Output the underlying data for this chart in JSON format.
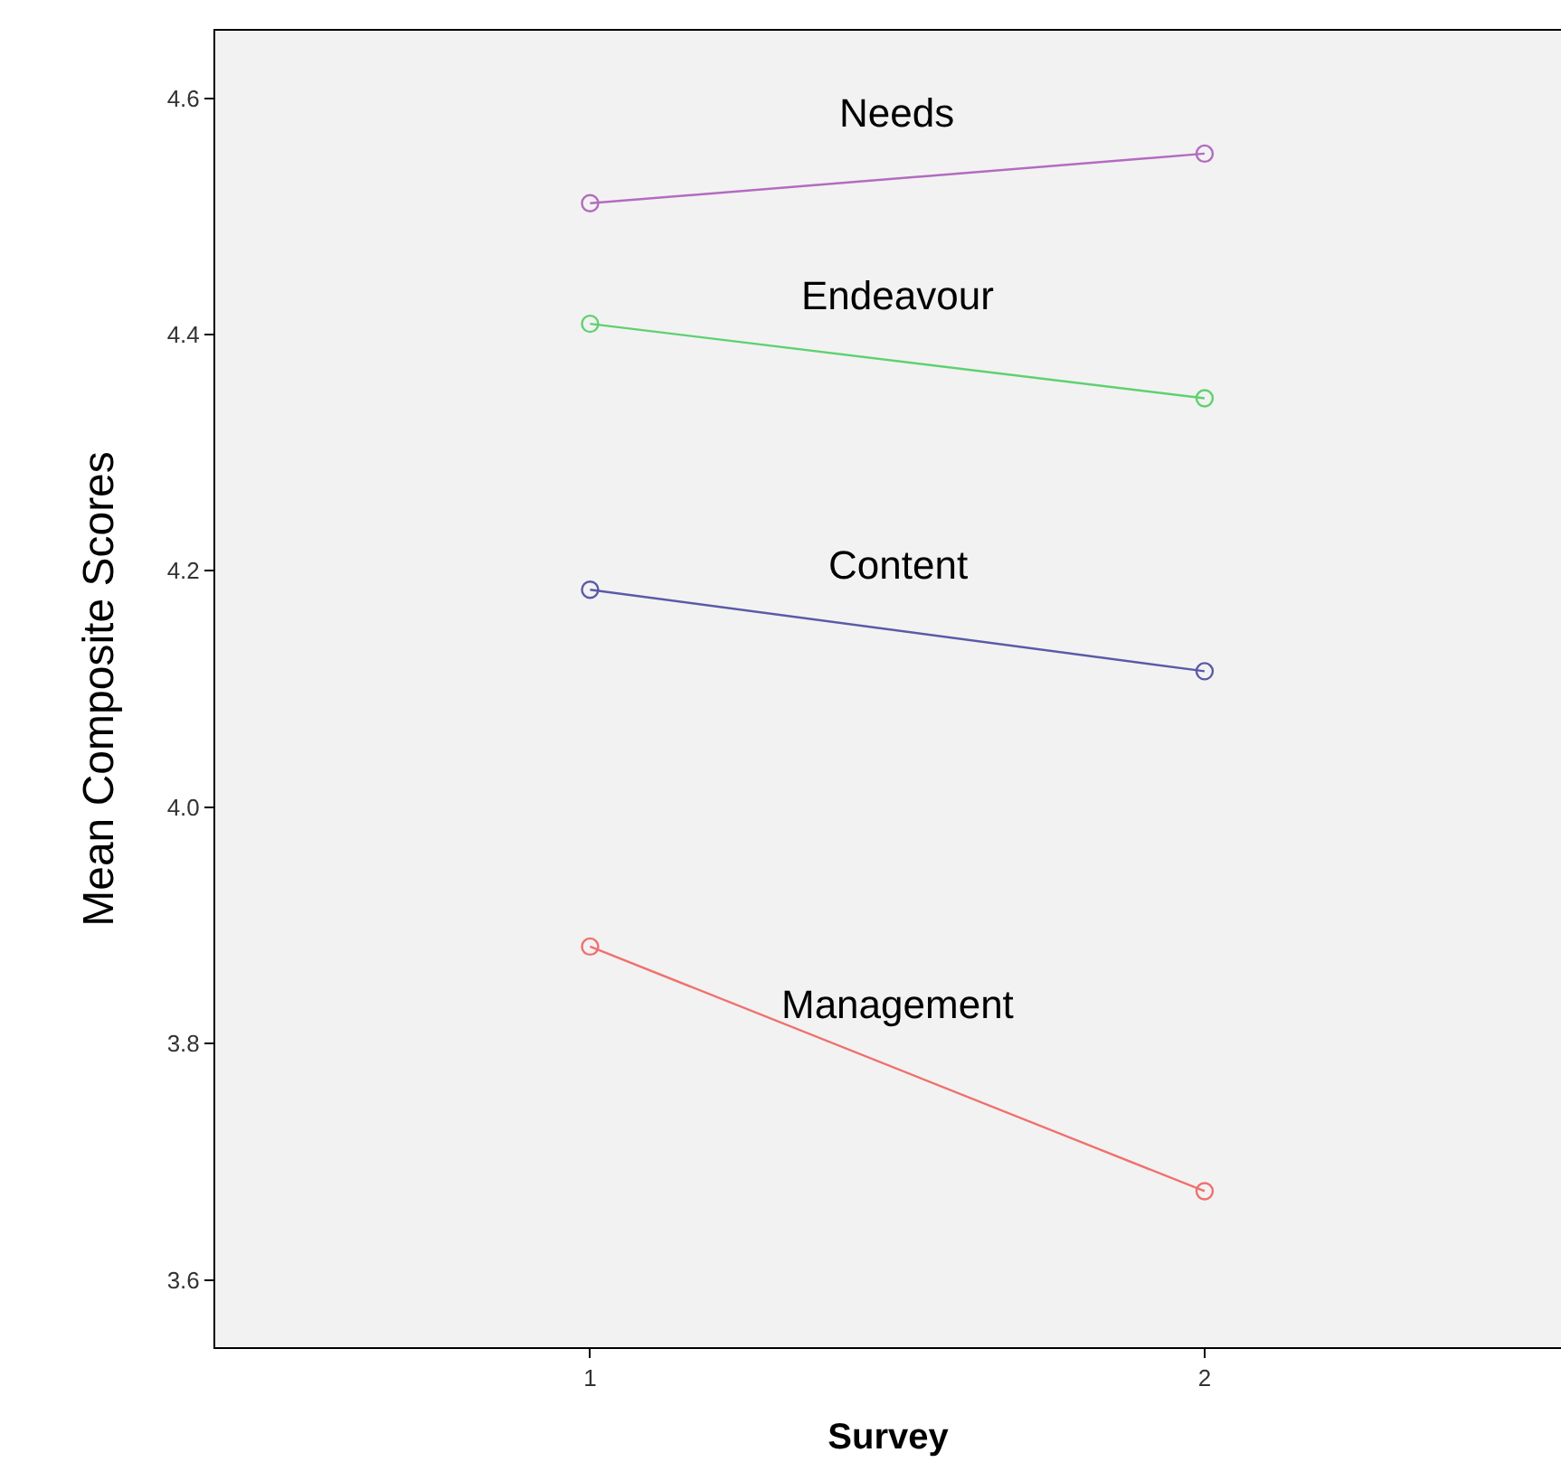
{
  "chart_data": {
    "type": "line",
    "xlabel": "Survey",
    "ylabel": "Mean Composite Scores",
    "x": [
      1,
      2
    ],
    "xlim": [
      0.39,
      2.58
    ],
    "xticks": [
      1,
      2
    ],
    "ylim": [
      3.543,
      4.657
    ],
    "yticks": [
      3.6,
      3.8,
      {
        "value": 4,
        "label": "4.0"
      },
      4.2,
      4.4,
      4.6
    ],
    "grid": false,
    "legend": false,
    "marker": "circle",
    "line_style": "solid",
    "series": [
      {
        "name": "Needs",
        "color": "#b36bc0",
        "values": [
          4.511,
          4.553
        ]
      },
      {
        "name": "Endeavour",
        "color": "#5ed170",
        "values": [
          4.409,
          4.346
        ]
      },
      {
        "name": "Content",
        "color": "#5a5aa8",
        "values": [
          4.184,
          4.115
        ]
      },
      {
        "name": "Management",
        "color": "#f0706e",
        "values": [
          3.882,
          3.675
        ]
      }
    ]
  }
}
